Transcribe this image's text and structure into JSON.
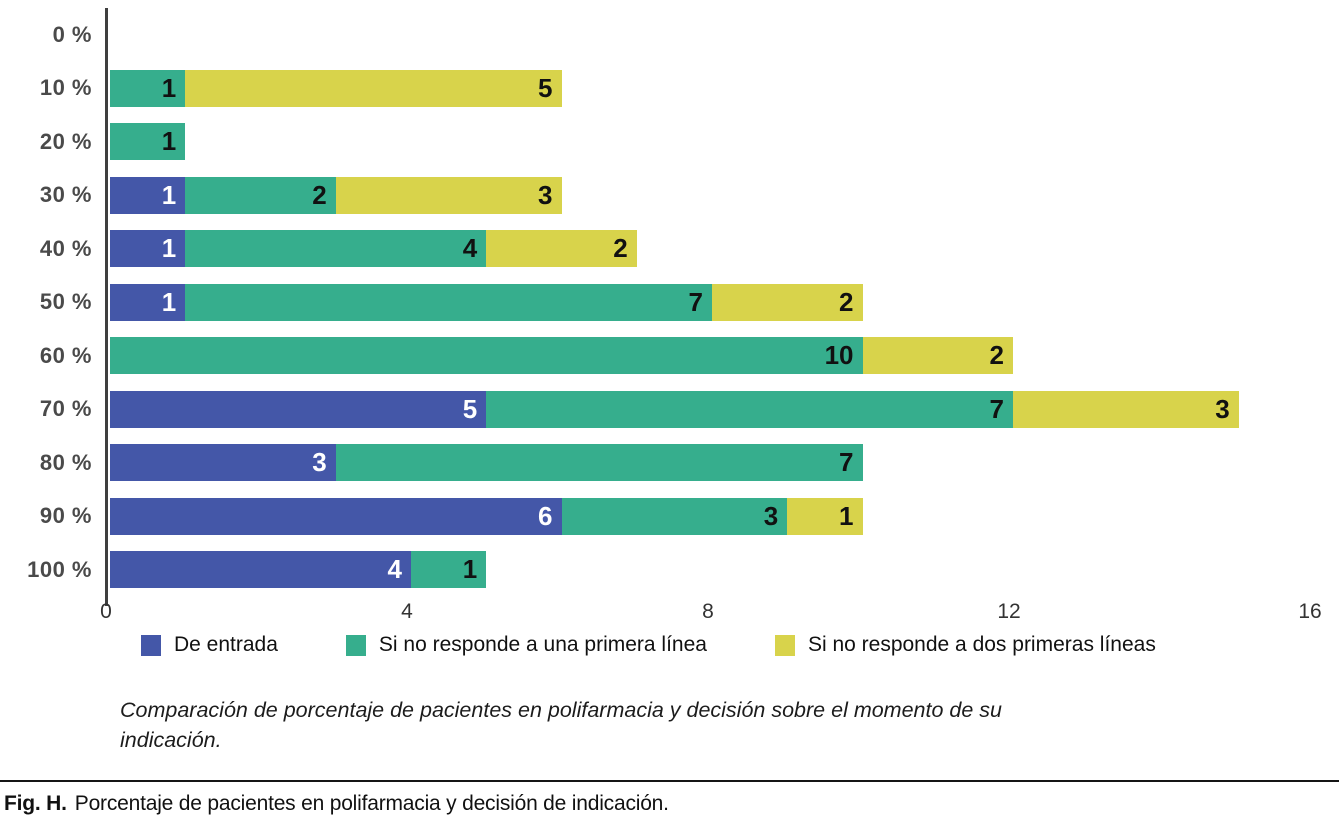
{
  "figure": {
    "caption_italic": "Comparación de porcentaje de pacientes en polifarmacia y decisión sobre el momento de su indicación.",
    "fig_label": "Fig. H.",
    "fig_text": "Porcentaje de pacientes en polifarmacia y decisión de indicación."
  },
  "colors": {
    "blue": "#4457A8",
    "green": "#36AE8D",
    "yellow": "#D8D34B",
    "axis": "#3f3f3f",
    "tick_label": "#333333",
    "category_label": "#4a4a4a"
  },
  "chart_data": {
    "type": "bar",
    "orientation": "horizontal",
    "stacked": true,
    "title": "",
    "xlabel": "",
    "ylabel": "",
    "categories": [
      "0 %",
      "10 %",
      "20 %",
      "30 %",
      "40 %",
      "50 %",
      "60 %",
      "70 %",
      "80 %",
      "90 %",
      "100 %"
    ],
    "series": [
      {
        "name": "De entrada",
        "color": "#4457A8",
        "label_color": "#ffffff",
        "values": [
          0,
          0,
          0,
          1,
          1,
          1,
          0,
          5,
          3,
          6,
          4
        ]
      },
      {
        "name": "Si no responde a una primera línea",
        "color": "#36AE8D",
        "label_color": "#111111",
        "values": [
          0,
          1,
          1,
          2,
          4,
          7,
          10,
          7,
          7,
          3,
          1
        ]
      },
      {
        "name": "Si no responde a dos primeras líneas",
        "color": "#D8D34B",
        "label_color": "#111111",
        "values": [
          0,
          5,
          0,
          3,
          2,
          2,
          2,
          3,
          0,
          1,
          0
        ]
      }
    ],
    "x_ticks": [
      0,
      4,
      8,
      12,
      16
    ],
    "xlim": [
      0,
      16
    ],
    "grid": false,
    "legend_position": "bottom",
    "bar_value_labels": "shown inside right edge of each segment"
  }
}
